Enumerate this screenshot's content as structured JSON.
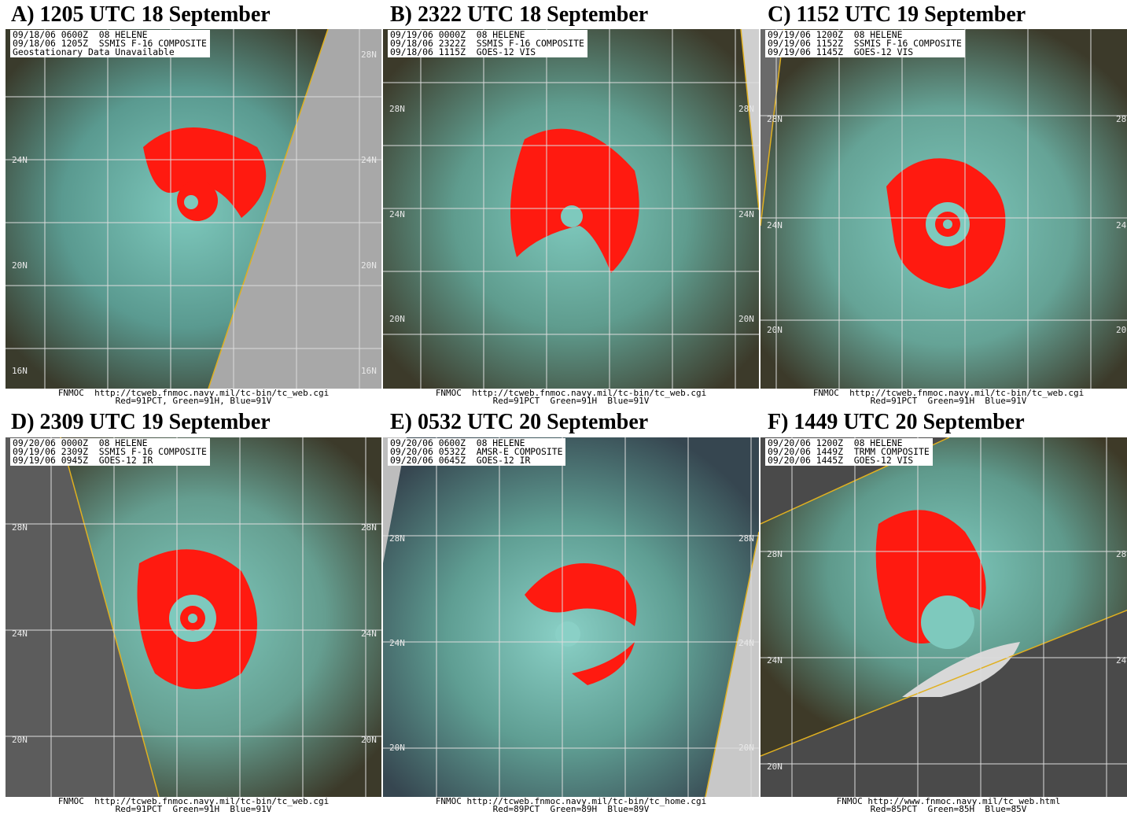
{
  "panels": [
    {
      "title": "A)  1205 UTC 18 September",
      "header": [
        "09/18/06 0600Z  08 HELENE",
        "09/18/06 1205Z  SSMIS F-16 COMPOSITE",
        "Geostationary Data Unavailable"
      ],
      "lat_left": [
        "24N",
        "20N",
        "16N"
      ],
      "lat_right": [
        "28N",
        "24N",
        "20N",
        "16N"
      ],
      "footer": [
        "FNMOC  http://tcweb.fnmoc.navy.mil/tc-bin/tc_web.cgi",
        "Red=91PCT, Green=91H, Blue=91V"
      ]
    },
    {
      "title": "B)  2322 UTC 18 September",
      "header": [
        "09/19/06 0000Z  08 HELENE",
        "09/18/06 2322Z  SSMIS F-16 COMPOSITE",
        "09/18/06 1115Z  GOES-12 VIS"
      ],
      "lat_left": [
        "28N",
        "24N",
        "20N"
      ],
      "lat_right": [
        "28N",
        "24N",
        "20N"
      ],
      "footer": [
        "FNMOC  http://tcweb.fnmoc.navy.mil/tc-bin/tc_web.cgi",
        "Red=91PCT  Green=91H  Blue=91V"
      ]
    },
    {
      "title": "C)  1152 UTC 19 September",
      "header": [
        "09/19/06 1200Z  08 HELENE",
        "09/19/06 1152Z  SSMIS F-16 COMPOSITE",
        "09/19/06 1145Z  GOES-12 VIS"
      ],
      "lat_left": [
        "28N",
        "24N",
        "20N"
      ],
      "lat_right": [
        "28",
        "24",
        "20"
      ],
      "footer": [
        "FNMOC  http://tcweb.fnmoc.navy.mil/tc-bin/tc_web.cgi",
        "Red=91PCT  Green=91H  Blue=91V"
      ]
    },
    {
      "title": "D)  2309 UTC 19 September",
      "header": [
        "09/20/06 0000Z  08 HELENE",
        "09/19/06 2309Z  SSMIS F-16 COMPOSITE",
        "09/19/06 0945Z  GOES-12 IR"
      ],
      "lat_left": [
        "28N",
        "24N",
        "20N"
      ],
      "lat_right": [
        "28N",
        "24N",
        "20N"
      ],
      "footer": [
        "FNMOC  http://tcweb.fnmoc.navy.mil/tc-bin/tc_web.cgi",
        "Red=91PCT  Green=91H  Blue=91V"
      ]
    },
    {
      "title": "E)  0532 UTC 20 September",
      "header": [
        "09/20/06 0600Z  08 HELENE",
        "09/20/06 0532Z  AMSR-E COMPOSITE",
        "09/20/06 0645Z  GOES-12 IR"
      ],
      "lat_left": [
        "28N",
        "24N",
        "20N"
      ],
      "lat_right": [
        "28N",
        "24N",
        "20N"
      ],
      "footer": [
        "FNMOC http://tcweb.fnmoc.navy.mil/tc-bin/tc_home.cgi",
        "Red=89PCT  Green=89H  Blue=89V"
      ]
    },
    {
      "title": "F)  1449 UTC 20 September",
      "header": [
        "09/20/06 1200Z  08 HELENE",
        "09/20/06 1449Z  TRMM COMPOSITE",
        "09/20/06 1445Z  GOES-12 VIS"
      ],
      "lat_left": [
        "28N",
        "24N",
        "20N"
      ],
      "lat_right": [
        "28",
        "24"
      ],
      "footer": [
        "FNMOC http://www.fnmoc.navy.mil/tc_web.html",
        "Red=85PCT  Green=85H  Blue=85V"
      ]
    }
  ],
  "colors": {
    "cloud_cyan": "#6fb3a9",
    "red_band": "#ff1a10",
    "background_dark": "#3d3a2e",
    "grid": "#dcdcdc",
    "swath_edge": "#e0b020",
    "no_data": "#a8a8a8"
  }
}
